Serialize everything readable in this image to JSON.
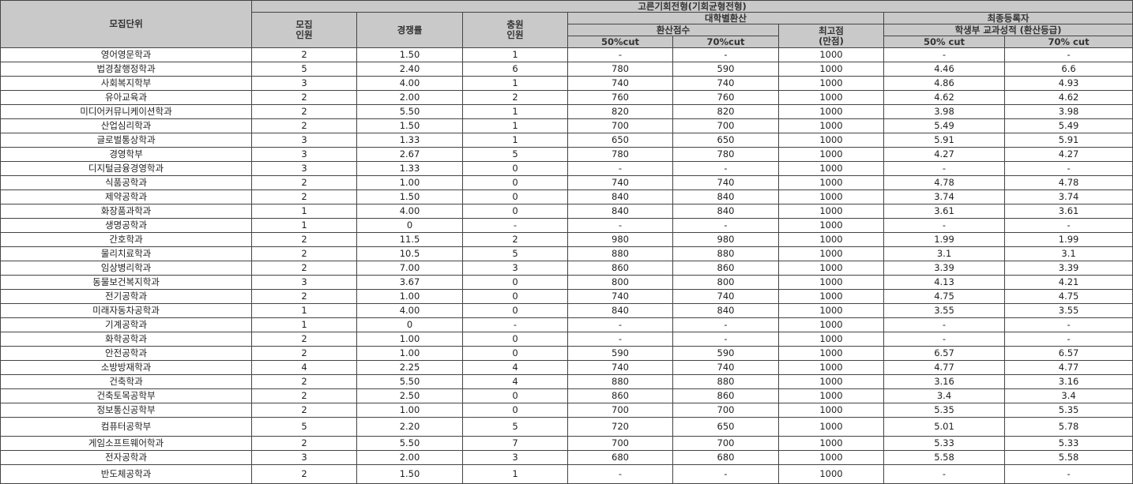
{
  "header": {
    "unit": "모집단위",
    "group": "고른기회전형(기회균형전형)",
    "recruit": [
      "모집",
      "인원"
    ],
    "competition": "경쟁률",
    "waitlist": [
      "충원",
      "인원"
    ],
    "univ_conversion": "대학별환산",
    "converted_score": "환산점수",
    "cut50": "50%cut",
    "cut70": "70%cut",
    "max_score": [
      "최고점",
      "(만점)"
    ],
    "final_registrants": "최종등록자",
    "school_record": "학생부 교과성적 (환산등급)",
    "final_cut50": "50% cut",
    "final_cut70": "70% cut"
  },
  "rows": [
    [
      "영어영문학과",
      "2",
      "1.50",
      "1",
      "-",
      "-",
      "1000",
      "-",
      "-"
    ],
    [
      "법경찰행정학과",
      "5",
      "2.40",
      "6",
      "780",
      "590",
      "1000",
      "4.46",
      "6.6"
    ],
    [
      "사회복지학부",
      "3",
      "4.00",
      "1",
      "740",
      "740",
      "1000",
      "4.86",
      "4.93"
    ],
    [
      "유아교육과",
      "2",
      "2.00",
      "2",
      "760",
      "760",
      "1000",
      "4.62",
      "4.62"
    ],
    [
      "미디어커뮤니케이션학과",
      "2",
      "5.50",
      "1",
      "820",
      "820",
      "1000",
      "3.98",
      "3.98"
    ],
    [
      "산업심리학과",
      "2",
      "1.50",
      "1",
      "700",
      "700",
      "1000",
      "5.49",
      "5.49"
    ],
    [
      "글로벌통상학과",
      "3",
      "1.33",
      "1",
      "650",
      "650",
      "1000",
      "5.91",
      "5.91"
    ],
    [
      "경영학부",
      "3",
      "2.67",
      "5",
      "780",
      "780",
      "1000",
      "4.27",
      "4.27"
    ],
    [
      "디지털금융경영학과",
      "3",
      "1.33",
      "0",
      "-",
      "-",
      "1000",
      "-",
      "-"
    ],
    [
      "식품공학과",
      "2",
      "1.00",
      "0",
      "740",
      "740",
      "1000",
      "4.78",
      "4.78"
    ],
    [
      "제약공학과",
      "2",
      "1.50",
      "0",
      "840",
      "840",
      "1000",
      "3.74",
      "3.74"
    ],
    [
      "화장품과학과",
      "1",
      "4.00",
      "0",
      "840",
      "840",
      "1000",
      "3.61",
      "3.61"
    ],
    [
      "생명공학과",
      "1",
      "0",
      "-",
      "-",
      "-",
      "1000",
      "-",
      "-"
    ],
    [
      "간호학과",
      "2",
      "11.5",
      "2",
      "980",
      "980",
      "1000",
      "1.99",
      "1.99"
    ],
    [
      "물리치료학과",
      "2",
      "10.5",
      "5",
      "880",
      "880",
      "1000",
      "3.1",
      "3.1"
    ],
    [
      "임상병리학과",
      "2",
      "7.00",
      "3",
      "860",
      "860",
      "1000",
      "3.39",
      "3.39"
    ],
    [
      "동물보건복지학과",
      "3",
      "3.67",
      "0",
      "800",
      "800",
      "1000",
      "4.13",
      "4.21"
    ],
    [
      "전기공학과",
      "2",
      "1.00",
      "0",
      "740",
      "740",
      "1000",
      "4.75",
      "4.75"
    ],
    [
      "미래자동차공학과",
      "1",
      "4.00",
      "0",
      "840",
      "840",
      "1000",
      "3.55",
      "3.55"
    ],
    [
      "기계공학과",
      "1",
      "0",
      "-",
      "-",
      "-",
      "1000",
      "-",
      "-"
    ],
    [
      "화학공학과",
      "2",
      "1.00",
      "0",
      "-",
      "-",
      "1000",
      "-",
      "-"
    ],
    [
      "안전공학과",
      "2",
      "1.00",
      "0",
      "590",
      "590",
      "1000",
      "6.57",
      "6.57"
    ],
    [
      "소방방재학과",
      "4",
      "2.25",
      "4",
      "740",
      "740",
      "1000",
      "4.77",
      "4.77"
    ],
    [
      "건축학과",
      "2",
      "5.50",
      "4",
      "880",
      "880",
      "1000",
      "3.16",
      "3.16"
    ],
    [
      "건축토목공학부",
      "2",
      "2.50",
      "0",
      "860",
      "860",
      "1000",
      "3.4",
      "3.4"
    ],
    [
      "정보통신공학부",
      "2",
      "1.00",
      "0",
      "700",
      "700",
      "1000",
      "5.35",
      "5.35"
    ],
    [
      "컴퓨터공학부",
      "5",
      "2.20",
      "5",
      "720",
      "650",
      "1000",
      "5.01",
      "5.78"
    ],
    [
      "게임소프트웨어학과",
      "2",
      "5.50",
      "7",
      "700",
      "700",
      "1000",
      "5.33",
      "5.33"
    ],
    [
      "전자공학과",
      "3",
      "2.00",
      "3",
      "680",
      "680",
      "1000",
      "5.58",
      "5.58"
    ],
    [
      "반도체공학과",
      "2",
      "1.50",
      "1",
      "-",
      "-",
      "1000",
      "-",
      "-"
    ]
  ]
}
